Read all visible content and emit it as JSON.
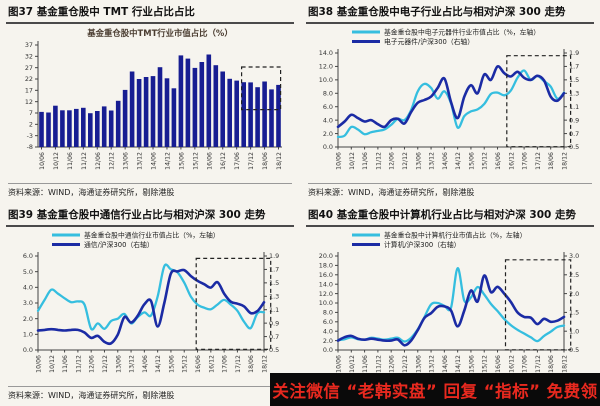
{
  "banner": {
    "text": "关注微信 “老韩实盘” 回复 “指标” 免费领",
    "bg": "#0a0a0a",
    "color": "#e8291f"
  },
  "colors": {
    "cyan": "#35bedf",
    "navy": "#1b2ba4",
    "bar": "#171d92",
    "axis": "#444444",
    "tick_text": "#333333",
    "inner_title": "#4a3c30",
    "box": "#222222"
  },
  "x_tick_labels": [
    "10/06",
    "10/12",
    "11/06",
    "11/12",
    "12/06",
    "12/12",
    "13/06",
    "13/12",
    "14/06",
    "14/12",
    "15/06",
    "15/12",
    "16/06",
    "16/12",
    "17/06",
    "17/12",
    "18/06",
    "18/12"
  ],
  "chart_data": [
    {
      "id": "fig37",
      "type": "bar",
      "header": "图37 基金重仓股中 TMT 行业占比占比",
      "inner_title": "基金重仓股中TMT行业市值占比（%）",
      "source": "资料来源：WIND，海通证券研究所，剔除港股",
      "ylim": [
        -8,
        37
      ],
      "yticks": [
        "37",
        "32",
        "27",
        "22",
        "17",
        "12",
        "7",
        "2",
        "-3",
        "-8"
      ],
      "values": [
        7.5,
        7.2,
        10.2,
        8.2,
        8.2,
        8.8,
        9.3,
        6.9,
        7.9,
        9.9,
        8.1,
        12.4,
        17.2,
        25.3,
        22.0,
        22.9,
        23.3,
        27.2,
        22.3,
        17.9,
        32.4,
        31.0,
        26.9,
        29.5,
        32.8,
        28.1,
        25.3,
        22.1,
        21.3,
        20.6,
        20.5,
        18.4,
        20.9,
        17.4,
        19.4
      ],
      "highlight_box": {
        "x0": 28.7,
        "x1": 33.8,
        "y0": 8.5,
        "y1": 27.3
      }
    },
    {
      "id": "fig38",
      "type": "line",
      "header": "图38 基金重仓股中电子行业占比与相对沪深 300 走势",
      "source": "资料来源：WIND，海通证券研究所，剔除港股",
      "left_ylim": [
        0,
        14
      ],
      "left_yticks": [
        "14.0",
        "12.0",
        "10.0",
        "8.0",
        "6.0",
        "4.0",
        "2.0",
        "0.0"
      ],
      "right_ylim": [
        0.5,
        1.9
      ],
      "right_yticks": [
        "1.9",
        "1.7",
        "1.5",
        "1.3",
        "1.1",
        "0.9",
        "0.7",
        "0.5"
      ],
      "legend": [
        {
          "label": "基金重仓股中电子元器件行业市值占比（%，左轴）",
          "color": "cyan"
        },
        {
          "label": "电子元器件/沪深300（右轴）",
          "color": "navy"
        }
      ],
      "series": [
        {
          "name": "基金重仓股中电子元器件行业市值占比",
          "axis": "left",
          "color": "cyan",
          "values": [
            1.5,
            1.7,
            3.0,
            2.6,
            1.9,
            2.2,
            2.4,
            2.6,
            3.3,
            4.2,
            4.0,
            5.5,
            8.3,
            9.4,
            8.8,
            7.2,
            8.3,
            6.5,
            2.9,
            4.6,
            5.3,
            5.6,
            6.4,
            7.9,
            8.1,
            7.7,
            8.4,
            10.3,
            11.4,
            10.0,
            10.6,
            9.8,
            9.0,
            7.2,
            8.1
          ]
        },
        {
          "name": "电子元器件/沪深300",
          "axis": "right",
          "color": "navy",
          "values": [
            0.8,
            0.88,
            0.98,
            0.93,
            0.88,
            0.9,
            0.84,
            0.8,
            0.9,
            0.92,
            0.85,
            1.02,
            1.16,
            1.2,
            1.25,
            1.38,
            1.52,
            1.17,
            0.93,
            1.25,
            1.42,
            1.3,
            1.58,
            1.5,
            1.7,
            1.6,
            1.55,
            1.62,
            1.53,
            1.5,
            1.56,
            1.49,
            1.25,
            1.19,
            1.3
          ]
        }
      ],
      "highlight_box": {
        "x0": 25.4,
        "x1": 34.6,
        "y0": 0.05,
        "y1": 13.6
      }
    },
    {
      "id": "fig39",
      "type": "line",
      "header": "图39 基金重仓股中通信行业占比与相对沪深 300 走势",
      "source": "资料来源：WIND，海通证券研究所，剔除港股",
      "left_ylim": [
        0,
        6
      ],
      "left_yticks": [
        "6.0",
        "5.0",
        "4.0",
        "3.0",
        "2.0",
        "1.0",
        "0.0"
      ],
      "right_ylim": [
        0.5,
        1.9
      ],
      "right_yticks": [
        "1.9",
        "1.7",
        "1.5",
        "1.3",
        "1.1",
        "0.9",
        "0.7",
        "0.5"
      ],
      "legend": [
        {
          "label": "基金重仓股中通信行业市值占比（%，左轴）",
          "color": "cyan"
        },
        {
          "label": "通信/沪深300（右轴）",
          "color": "navy"
        }
      ],
      "series": [
        {
          "name": "基金重仓股中通信行业市值占比",
          "axis": "left",
          "color": "cyan",
          "values": [
            2.5,
            3.2,
            3.85,
            3.6,
            3.3,
            3.05,
            3.1,
            2.9,
            1.35,
            1.7,
            1.35,
            1.85,
            2.0,
            2.3,
            1.7,
            2.1,
            2.4,
            2.2,
            3.4,
            5.35,
            5.15,
            4.95,
            4.3,
            3.4,
            2.9,
            2.7,
            2.6,
            2.9,
            3.2,
            2.9,
            2.5,
            1.8,
            1.4,
            2.35,
            2.4
          ]
        },
        {
          "name": "通信/沪深300",
          "axis": "right",
          "color": "navy",
          "values": [
            0.79,
            0.8,
            0.81,
            0.8,
            0.79,
            0.8,
            0.8,
            0.76,
            0.68,
            0.71,
            0.62,
            0.6,
            0.73,
            0.99,
            0.91,
            1.01,
            1.18,
            1.23,
            0.85,
            1.2,
            1.64,
            1.67,
            1.69,
            1.6,
            1.53,
            1.48,
            1.43,
            1.51,
            1.34,
            1.22,
            1.19,
            1.15,
            1.05,
            1.08,
            1.21
          ]
        }
      ],
      "highlight_box": {
        "x0": 23.8,
        "x1": 34.6,
        "y0": 0.05,
        "y1": 5.85
      }
    },
    {
      "id": "fig40",
      "type": "line",
      "header": "图40 基金重仓股中计算机行业占比与相对沪深 300 走势",
      "source": "资料来源：WIND，海通证券研究所，剔除港股",
      "left_ylim": [
        0,
        20
      ],
      "left_yticks": [
        "20.0",
        "18.0",
        "16.0",
        "14.0",
        "12.0",
        "10.0",
        "8.0",
        "6.0",
        "4.0",
        "2.0",
        "0.0"
      ],
      "right_ylim": [
        0.5,
        3.0
      ],
      "right_yticks": [
        "3.0",
        "2.5",
        "2.0",
        "1.5",
        "1.0",
        "0.5"
      ],
      "legend": [
        {
          "label": "基金重仓股中计算机行业市值占比（%，左轴）",
          "color": "cyan"
        },
        {
          "label": "计算机/沪深300（右轴）",
          "color": "navy"
        }
      ],
      "series": [
        {
          "name": "基金重仓股中计算机行业市值占比",
          "axis": "left",
          "color": "cyan",
          "values": [
            2.1,
            2.3,
            2.7,
            2.3,
            2.2,
            2.6,
            2.4,
            2.2,
            2.4,
            2.6,
            1.8,
            2.6,
            4.4,
            7.0,
            9.7,
            10.0,
            9.4,
            9.0,
            17.4,
            10.5,
            11.2,
            13.4,
            11.8,
            9.8,
            8.3,
            6.6,
            5.3,
            4.3,
            3.5,
            2.7,
            1.9,
            3.0,
            3.9,
            4.9,
            5.2
          ]
        },
        {
          "name": "计算机/沪深300",
          "axis": "right",
          "color": "navy",
          "values": [
            0.75,
            0.84,
            0.875,
            0.8,
            0.775,
            0.8,
            0.775,
            0.75,
            0.75,
            0.78,
            0.625,
            0.75,
            1.03,
            1.35,
            1.48,
            1.65,
            1.66,
            1.55,
            1.13,
            1.55,
            2.08,
            1.79,
            2.48,
            2.04,
            2.18,
            2.0,
            1.78,
            1.5,
            1.38,
            1.36,
            1.19,
            1.33,
            1.25,
            1.28,
            1.38
          ]
        }
      ],
      "highlight_box": {
        "x0": 25.2,
        "x1": 34.6,
        "y0": 0.05,
        "y1": 19.2
      }
    }
  ]
}
